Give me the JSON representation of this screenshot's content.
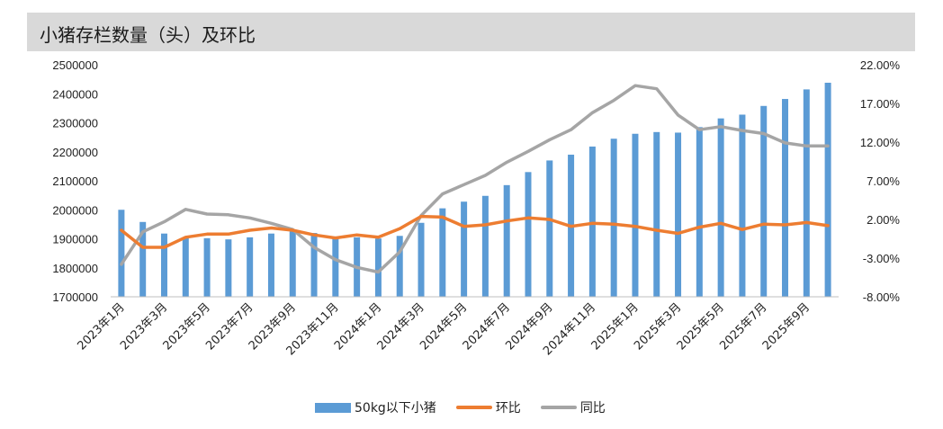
{
  "title": "小猪存栏数量（头）及环比",
  "colors": {
    "bar": "#5b9bd5",
    "mom": "#ed7d31",
    "yoy": "#a5a5a5"
  },
  "chart_data": {
    "type": "bar",
    "title": "小猪存栏数量（头）及环比",
    "categories": [
      "2023年1月",
      "2023年2月",
      "2023年3月",
      "2023年4月",
      "2023年5月",
      "2023年6月",
      "2023年7月",
      "2023年8月",
      "2023年9月",
      "2023年10月",
      "2023年11月",
      "2023年12月",
      "2024年1月",
      "2024年2月",
      "2024年3月",
      "2024年4月",
      "2024年5月",
      "2024年6月",
      "2024年7月",
      "2024年8月",
      "2024年9月",
      "2024年10月",
      "2024年11月",
      "2024年12月",
      "2025年1月",
      "2025年2月",
      "2025年3月",
      "2025年4月",
      "2025年5月",
      "2025年6月",
      "2025年7月",
      "2025年8月",
      "2025年9月",
      "2025年10月"
    ],
    "x_tick_labels": [
      "2023年1月",
      "2023年3月",
      "2023年5月",
      "2023年7月",
      "2023年9月",
      "2023年11月",
      "2024年1月",
      "2024年3月",
      "2024年5月",
      "2024年7月",
      "2024年9月",
      "2024年11月",
      "2025年1月",
      "2025年3月",
      "2025年5月",
      "2025年7月",
      "2025年9月"
    ],
    "y_left": {
      "ylim": [
        1700000,
        2500000
      ],
      "ticks": [
        "1700000",
        "1800000",
        "1900000",
        "2000000",
        "2100000",
        "2200000",
        "2300000",
        "2400000",
        "2500000"
      ]
    },
    "y_right": {
      "ylim": [
        -8,
        22
      ],
      "ticks": [
        "-8.00%",
        "-3.00%",
        "2.00%",
        "7.00%",
        "12.00%",
        "17.00%",
        "22.00%"
      ]
    },
    "series": [
      {
        "name": "50kg以下小猪",
        "type": "bar",
        "axis": "left",
        "values": [
          2000000,
          1958000,
          1918000,
          1905000,
          1902000,
          1898000,
          1905000,
          1918000,
          1925000,
          1920000,
          1908000,
          1905000,
          1901000,
          1910000,
          1955000,
          2005000,
          2028000,
          2048000,
          2085000,
          2130000,
          2170000,
          2190000,
          2218000,
          2245000,
          2262000,
          2268000,
          2266000,
          2285000,
          2315000,
          2328000,
          2358000,
          2382000,
          2415000,
          2438000
        ]
      },
      {
        "name": "环比",
        "type": "line",
        "axis": "right",
        "values": [
          0.6,
          -1.6,
          -1.6,
          -0.3,
          0.1,
          0.1,
          0.6,
          0.9,
          0.6,
          0.0,
          -0.4,
          0.0,
          -0.3,
          0.8,
          2.4,
          2.3,
          1.1,
          1.3,
          1.8,
          2.2,
          2.0,
          1.1,
          1.5,
          1.4,
          1.1,
          0.6,
          0.2,
          1.0,
          1.5,
          0.7,
          1.4,
          1.3,
          1.6,
          1.2
        ]
      },
      {
        "name": "同比",
        "type": "line",
        "axis": "right",
        "values": [
          -3.8,
          0.4,
          1.7,
          3.3,
          2.7,
          2.6,
          2.2,
          1.5,
          0.7,
          -1.6,
          -3.2,
          -4.2,
          -4.8,
          -2.2,
          2.5,
          5.3,
          6.5,
          7.7,
          9.4,
          10.8,
          12.3,
          13.6,
          15.8,
          17.4,
          19.3,
          18.9,
          15.5,
          13.6,
          14.0,
          13.5,
          13.1,
          11.9,
          11.5,
          11.5
        ]
      }
    ],
    "legend_position": "bottom",
    "grid": false
  }
}
